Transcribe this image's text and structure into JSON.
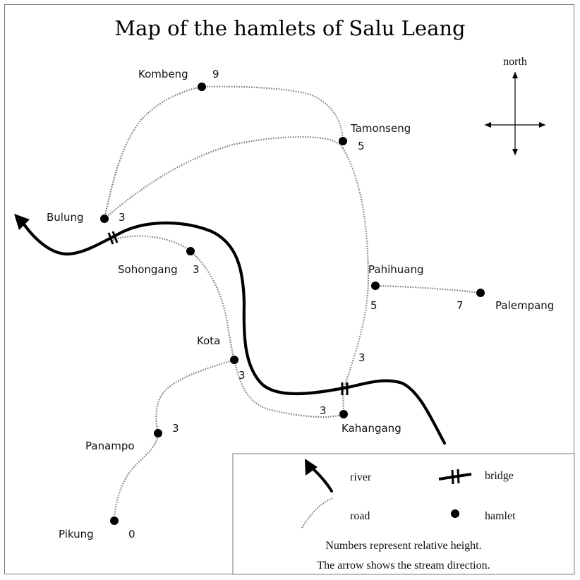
{
  "title": "Map of the hamlets of Salu Leang",
  "compass": {
    "label": "north",
    "icon": "compass-cross-icon"
  },
  "hamlets": [
    {
      "name": "Kombeng",
      "height": "9"
    },
    {
      "name": "Tamonseng",
      "height": "5"
    },
    {
      "name": "Bulung",
      "height": "3"
    },
    {
      "name": "Sohongang",
      "height": "3"
    },
    {
      "name": "Pahihuang",
      "height": "5"
    },
    {
      "name": "Palempang",
      "height": "7"
    },
    {
      "name": "Kota",
      "height": "3"
    },
    {
      "name": "Kahangang",
      "height": "3"
    },
    {
      "name": "Panampo",
      "height": "3"
    },
    {
      "name": "Pikung",
      "height": "0"
    }
  ],
  "extra_heights": [
    "3"
  ],
  "legend": {
    "river": "river",
    "bridge": "bridge",
    "road": "road",
    "hamlet": "hamlet",
    "note1": "Numbers represent relative height.",
    "note2": "The arrow shows the stream direction."
  },
  "colors": {
    "river": "#000000",
    "road": "#7a7a7a",
    "frame": "#7a7a7a"
  }
}
